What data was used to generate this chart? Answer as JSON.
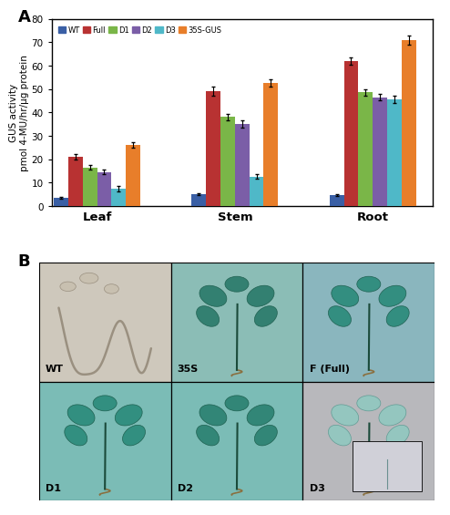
{
  "groups": [
    "Leaf",
    "Stem",
    "Root"
  ],
  "series": [
    "WT",
    "Full",
    "D1",
    "D2",
    "D3",
    "35S-GUS"
  ],
  "bar_colors": [
    "#3a5fa5",
    "#b83232",
    "#7ab648",
    "#7b5ea7",
    "#4fb8c8",
    "#e87e2a"
  ],
  "values": {
    "Leaf": [
      3.5,
      21.0,
      16.5,
      14.5,
      7.5,
      26.0
    ],
    "Stem": [
      5.0,
      49.0,
      38.0,
      35.0,
      12.5,
      52.5
    ],
    "Root": [
      4.5,
      62.0,
      48.5,
      46.5,
      45.5,
      71.0
    ]
  },
  "errors": {
    "Leaf": [
      0.4,
      1.2,
      1.0,
      1.0,
      1.2,
      1.2
    ],
    "Stem": [
      0.4,
      2.0,
      1.5,
      1.5,
      1.0,
      1.5
    ],
    "Root": [
      0.4,
      1.5,
      1.5,
      1.5,
      1.5,
      2.0
    ]
  },
  "ylabel": "GUS activity\npmol 4-MU/hr/µg protein",
  "ylim": [
    0,
    80
  ],
  "yticks": [
    0,
    10,
    20,
    30,
    40,
    50,
    60,
    70,
    80
  ],
  "panel_a_label": "A",
  "panel_b_label": "B",
  "photo_labels": [
    "WT",
    "35S",
    "F (Full)",
    "D1",
    "D2",
    "D3"
  ],
  "photo_bg_colors": [
    "#cec8bc",
    "#8bbdb6",
    "#8ab6be",
    "#7bbcb6",
    "#7bbcb6",
    "#b8b8bc"
  ],
  "photo_plant_colors": [
    null,
    "#2a7a6a",
    "#2a8a7a",
    "#2a8a7a",
    "#2a8070",
    "#7ab8b8"
  ]
}
